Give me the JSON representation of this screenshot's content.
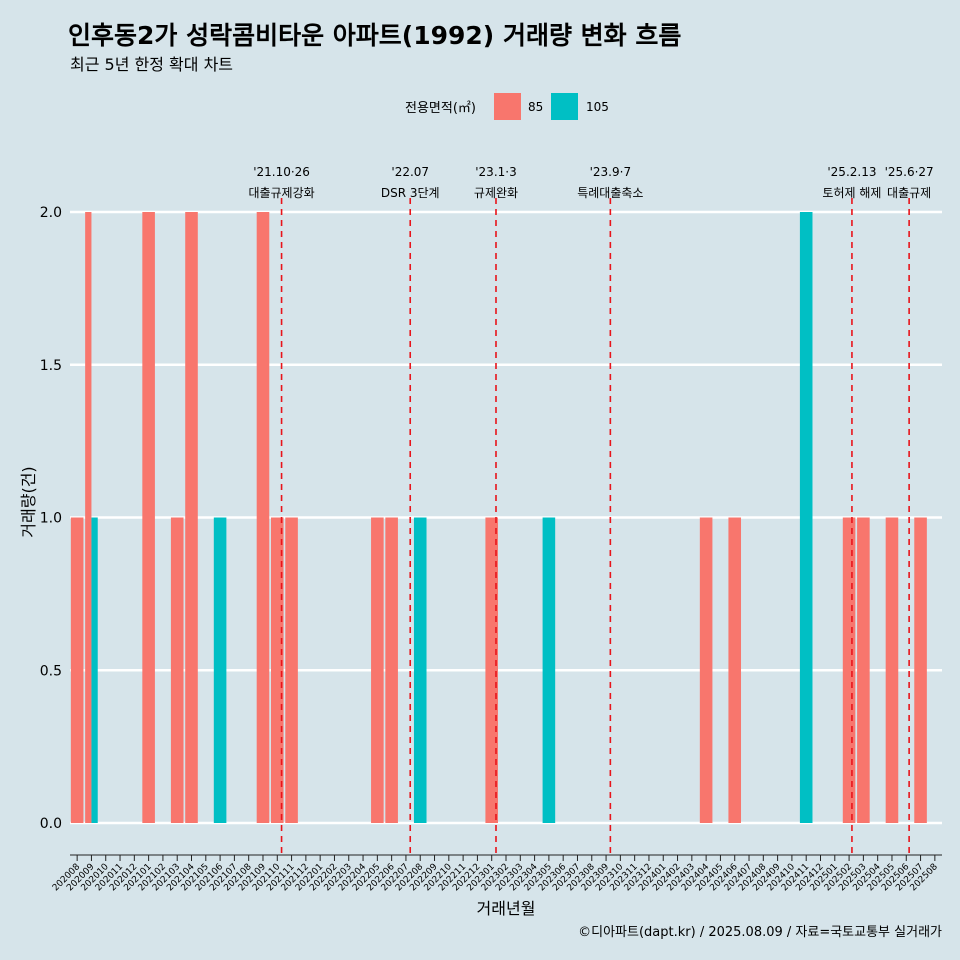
{
  "header": {
    "title": "인후동2가 성락콤비타운 아파트(1992) 거래량 변화 흐름",
    "subtitle": "최근 5년 한정 확대 차트"
  },
  "legend": {
    "title": "전용면적(㎡)",
    "items": [
      {
        "label": "85",
        "color": "#F8766D"
      },
      {
        "label": "105",
        "color": "#00BFC4"
      }
    ]
  },
  "caption": "©디아파트(dapt.kr) / 2025.08.09 / 자료=국토교통부 실거래가",
  "chart_data": {
    "type": "bar",
    "xlabel": "거래년월",
    "ylabel": "거래량(건)",
    "ylim": [
      0,
      2
    ],
    "yticks": [
      "0.0",
      "0.5",
      "1.0",
      "1.5",
      "2.0"
    ],
    "grid": "horizontal",
    "legend_position": "top",
    "categories": [
      "202008",
      "202009",
      "202010",
      "202011",
      "202012",
      "202101",
      "202102",
      "202103",
      "202104",
      "202105",
      "202106",
      "202107",
      "202108",
      "202109",
      "202110",
      "202111",
      "202112",
      "202201",
      "202202",
      "202203",
      "202204",
      "202205",
      "202206",
      "202207",
      "202208",
      "202209",
      "202210",
      "202211",
      "202212",
      "202301",
      "202302",
      "202303",
      "202304",
      "202305",
      "202306",
      "202307",
      "202308",
      "202309",
      "202310",
      "202311",
      "202312",
      "202401",
      "202402",
      "202403",
      "202404",
      "202405",
      "202406",
      "202407",
      "202408",
      "202409",
      "202410",
      "202411",
      "202412",
      "202501",
      "202502",
      "202503",
      "202504",
      "202505",
      "202506",
      "202507",
      "202508"
    ],
    "series": [
      {
        "name": "85",
        "color": "#F8766D",
        "values": [
          1,
          2,
          0,
          0,
          0,
          2,
          0,
          1,
          2,
          0,
          0,
          0,
          0,
          2,
          1,
          1,
          0,
          0,
          0,
          0,
          0,
          1,
          1,
          0,
          0,
          0,
          0,
          0,
          0,
          1,
          0,
          0,
          0,
          0,
          0,
          0,
          0,
          0,
          0,
          0,
          0,
          0,
          0,
          0,
          1,
          0,
          1,
          0,
          0,
          0,
          0,
          0,
          0,
          0,
          1,
          1,
          0,
          1,
          0,
          1,
          0
        ]
      },
      {
        "name": "105",
        "color": "#00BFC4",
        "values": [
          0,
          1,
          0,
          0,
          0,
          0,
          0,
          0,
          0,
          0,
          1,
          0,
          0,
          0,
          0,
          0,
          0,
          0,
          0,
          0,
          0,
          0,
          0,
          0,
          1,
          0,
          0,
          0,
          0,
          0,
          0,
          0,
          0,
          1,
          0,
          0,
          0,
          0,
          0,
          0,
          0,
          0,
          0,
          0,
          0,
          0,
          0,
          0,
          0,
          0,
          0,
          2,
          0,
          0,
          0,
          0,
          0,
          0,
          0,
          0,
          0
        ]
      }
    ],
    "annotations": [
      {
        "index": 14.3,
        "date": "'21.10·26",
        "text": "대출규제강화"
      },
      {
        "index": 23.3,
        "date": "'22.07",
        "text": "DSR 3단계"
      },
      {
        "index": 29.3,
        "date": "'23.1·3",
        "text": "규제완화"
      },
      {
        "index": 37.3,
        "date": "'23.9·7",
        "text": "특례대출축소"
      },
      {
        "index": 54.2,
        "date": "'25.2.13",
        "text": "토허제 해제"
      },
      {
        "index": 58.2,
        "date": "'25.6·27",
        "text": "대출규제"
      }
    ]
  }
}
